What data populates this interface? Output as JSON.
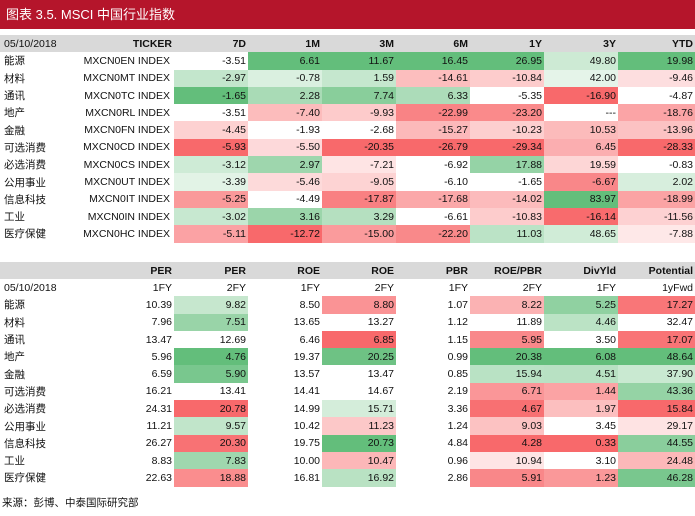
{
  "title": "图表 3.5. MSCI 中国行业指数",
  "source": "来源：彭博、中泰国际研究部",
  "colors": {
    "title_bg": "#b5152b",
    "pos_dark": "#63be7b",
    "pos_light": "#cdebd4",
    "neg_dark": "#f8696b",
    "neg_light": "#fbd0d1"
  },
  "table1": {
    "date": "05/10/2018",
    "headers": [
      "TICKER",
      "7D",
      "1M",
      "3M",
      "6M",
      "1Y",
      "3Y",
      "YTD"
    ],
    "rows": [
      {
        "name": "能源",
        "ticker": "MXCN0EN INDEX",
        "values": [
          "-3.51",
          "6.61",
          "11.67",
          "16.45",
          "26.95",
          "49.80",
          "19.98"
        ]
      },
      {
        "name": "材料",
        "ticker": "MXCN0MT INDEX",
        "values": [
          "-2.97",
          "-0.78",
          "1.59",
          "-14.61",
          "-10.84",
          "42.00",
          "-9.46"
        ]
      },
      {
        "name": "通讯",
        "ticker": "MXCN0TC INDEX",
        "values": [
          "-1.65",
          "2.28",
          "7.74",
          "6.33",
          "-5.35",
          "-16.90",
          "-4.87"
        ]
      },
      {
        "name": "地产",
        "ticker": "MXCN0RL INDEX",
        "values": [
          "-3.51",
          "-7.40",
          "-9.93",
          "-22.99",
          "-23.20",
          "---",
          "-18.76"
        ]
      },
      {
        "name": "金融",
        "ticker": "MXCN0FN INDEX",
        "values": [
          "-4.45",
          "-1.93",
          "-2.68",
          "-15.27",
          "-10.23",
          "10.53",
          "-13.96"
        ]
      },
      {
        "name": "可选消费",
        "ticker": "MXCN0CD INDEX",
        "values": [
          "-5.93",
          "-5.50",
          "-20.35",
          "-26.79",
          "-29.34",
          "6.45",
          "-28.33"
        ]
      },
      {
        "name": "必选消费",
        "ticker": "MXCN0CS INDEX",
        "values": [
          "-3.12",
          "2.97",
          "-7.21",
          "-6.92",
          "17.88",
          "19.59",
          "-0.83"
        ]
      },
      {
        "name": "公用事业",
        "ticker": "MXCN0UT INDEX",
        "values": [
          "-3.39",
          "-5.46",
          "-9.05",
          "-6.10",
          "-1.65",
          "-6.67",
          "2.02"
        ]
      },
      {
        "name": "信息科技",
        "ticker": "MXCN0IT INDEX",
        "values": [
          "-5.25",
          "-4.49",
          "-17.87",
          "-17.68",
          "-14.02",
          "83.97",
          "-18.99"
        ]
      },
      {
        "name": "工业",
        "ticker": "MXCN0IN INDEX",
        "values": [
          "-3.02",
          "3.16",
          "3.29",
          "-6.61",
          "-10.83",
          "-16.14",
          "-11.56"
        ]
      },
      {
        "name": "医疗保健",
        "ticker": "MXCN0HC INDEX",
        "values": [
          "-5.11",
          "-12.72",
          "-15.00",
          "-22.20",
          "11.03",
          "48.65",
          "-7.88"
        ]
      }
    ]
  },
  "table2": {
    "date": "05/10/2018",
    "headers": [
      "PER",
      "PER",
      "ROE",
      "ROE",
      "PBR",
      "ROE/PBR",
      "DivYld",
      "Potential"
    ],
    "subheaders": [
      "1FY",
      "2FY",
      "1FY",
      "2FY",
      "1FY",
      "2FY",
      "1FY",
      "1yFwd"
    ],
    "rows": [
      {
        "name": "能源",
        "values": [
          "10.39",
          "9.82",
          "8.50",
          "8.80",
          "1.07",
          "8.22",
          "5.25",
          "17.27"
        ]
      },
      {
        "name": "材料",
        "values": [
          "7.96",
          "7.51",
          "13.65",
          "13.27",
          "1.12",
          "11.89",
          "4.46",
          "32.47"
        ]
      },
      {
        "name": "通讯",
        "values": [
          "13.47",
          "12.69",
          "6.46",
          "6.85",
          "1.15",
          "5.95",
          "3.50",
          "17.07"
        ]
      },
      {
        "name": "地产",
        "values": [
          "5.96",
          "4.76",
          "19.37",
          "20.25",
          "0.99",
          "20.38",
          "6.08",
          "48.64"
        ]
      },
      {
        "name": "金融",
        "values": [
          "6.59",
          "5.90",
          "13.57",
          "13.47",
          "0.85",
          "15.94",
          "4.51",
          "37.90"
        ]
      },
      {
        "name": "可选消费",
        "values": [
          "16.21",
          "13.41",
          "14.41",
          "14.67",
          "2.19",
          "6.71",
          "1.44",
          "43.36"
        ]
      },
      {
        "name": "必选消费",
        "values": [
          "24.31",
          "20.78",
          "14.99",
          "15.71",
          "3.36",
          "4.67",
          "1.97",
          "15.84"
        ]
      },
      {
        "name": "公用事业",
        "values": [
          "11.21",
          "9.57",
          "10.42",
          "11.23",
          "1.24",
          "9.03",
          "3.45",
          "29.17"
        ]
      },
      {
        "name": "信息科技",
        "values": [
          "26.27",
          "20.30",
          "19.75",
          "20.73",
          "4.84",
          "4.28",
          "0.33",
          "44.55"
        ]
      },
      {
        "name": "工业",
        "values": [
          "8.83",
          "7.83",
          "10.00",
          "10.47",
          "0.96",
          "10.94",
          "3.10",
          "24.48"
        ]
      },
      {
        "name": "医疗保健",
        "values": [
          "22.63",
          "18.88",
          "16.81",
          "16.92",
          "2.86",
          "5.91",
          "1.23",
          "46.28"
        ]
      }
    ]
  }
}
